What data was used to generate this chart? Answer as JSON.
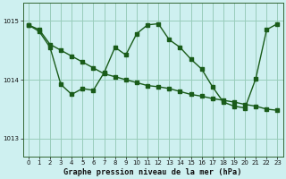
{
  "title": "Graphe pression niveau de la mer (hPa)",
  "bg_color": "#cef0f0",
  "grid_color": "#99ccbb",
  "line_color": "#1a5c1a",
  "xlim": [
    -0.5,
    23.5
  ],
  "ylim": [
    1012.7,
    1015.3
  ],
  "yticks": [
    1013,
    1014,
    1015
  ],
  "xticks": [
    0,
    1,
    2,
    3,
    4,
    5,
    6,
    7,
    8,
    9,
    10,
    11,
    12,
    13,
    14,
    15,
    16,
    17,
    18,
    19,
    20,
    21,
    22,
    23
  ],
  "series1": {
    "x": [
      0,
      1,
      2,
      3,
      4,
      5,
      6,
      7,
      8,
      9,
      10,
      11,
      12,
      13,
      14,
      15,
      16,
      17,
      18,
      19,
      20,
      21,
      22,
      23
    ],
    "y": [
      1014.93,
      1014.85,
      1014.6,
      1014.5,
      1014.4,
      1014.3,
      1014.2,
      1014.1,
      1014.05,
      1014.0,
      1013.95,
      1013.9,
      1013.88,
      1013.85,
      1013.8,
      1013.75,
      1013.72,
      1013.68,
      1013.65,
      1013.62,
      1013.58,
      1013.55,
      1013.5,
      1013.48
    ]
  },
  "series2": {
    "x": [
      0,
      1,
      2,
      3,
      4,
      5,
      6,
      7,
      8,
      9,
      10,
      11,
      12,
      13,
      14,
      15,
      16,
      17,
      18,
      19,
      20,
      21,
      22,
      23
    ],
    "y": [
      1014.93,
      1014.82,
      1014.55,
      1013.92,
      1013.75,
      1013.85,
      1013.82,
      1014.12,
      1014.55,
      1014.42,
      1014.78,
      1014.93,
      1014.95,
      1014.68,
      1014.55,
      1014.35,
      1014.18,
      1013.88,
      1013.62,
      1013.55,
      1013.52,
      1014.02,
      1014.85,
      1014.95
    ]
  }
}
